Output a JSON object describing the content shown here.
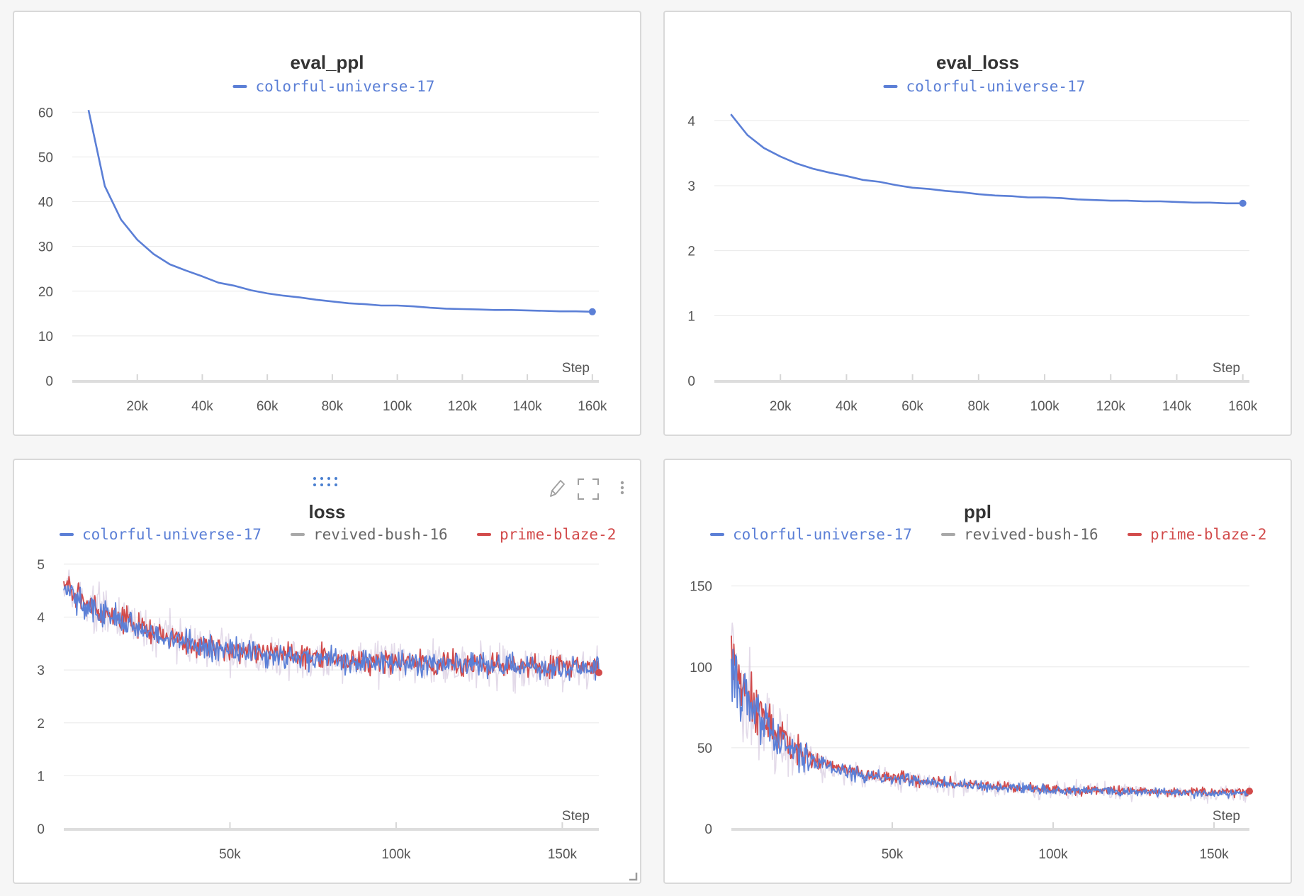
{
  "chart_data": [
    {
      "id": "eval_ppl",
      "type": "line",
      "title": "eval_ppl",
      "xlabel": "Step",
      "ylabel": "",
      "xlim": [
        0,
        162000
      ],
      "ylim": [
        0,
        61
      ],
      "xticks": [
        20000,
        40000,
        60000,
        80000,
        100000,
        120000,
        140000,
        160000
      ],
      "xtick_labels": [
        "20k",
        "40k",
        "60k",
        "80k",
        "100k",
        "120k",
        "140k",
        "160k"
      ],
      "yticks": [
        0,
        10,
        20,
        30,
        40,
        50,
        60
      ],
      "ytick_labels": [
        "0",
        "10",
        "20",
        "30",
        "40",
        "50",
        "60"
      ],
      "legend": [
        "colorful-universe-17"
      ],
      "series": [
        {
          "name": "colorful-universe-17",
          "color": "#5b7fd6",
          "x": [
            5000,
            10000,
            15000,
            20000,
            25000,
            30000,
            35000,
            40000,
            45000,
            50000,
            55000,
            60000,
            65000,
            70000,
            75000,
            80000,
            85000,
            90000,
            95000,
            100000,
            105000,
            110000,
            115000,
            120000,
            125000,
            130000,
            135000,
            140000,
            145000,
            150000,
            155000,
            160000
          ],
          "values": [
            60.5,
            43.5,
            36.0,
            31.5,
            28.3,
            26.0,
            24.6,
            23.3,
            21.9,
            21.2,
            20.2,
            19.5,
            19.0,
            18.6,
            18.1,
            17.7,
            17.3,
            17.1,
            16.8,
            16.8,
            16.6,
            16.3,
            16.1,
            16.0,
            15.9,
            15.8,
            15.8,
            15.7,
            15.6,
            15.5,
            15.5,
            15.4
          ]
        }
      ]
    },
    {
      "id": "eval_loss",
      "type": "line",
      "title": "eval_loss",
      "xlabel": "Step",
      "ylabel": "",
      "xlim": [
        0,
        162000
      ],
      "ylim": [
        0,
        4.2
      ],
      "xticks": [
        20000,
        40000,
        60000,
        80000,
        100000,
        120000,
        140000,
        160000
      ],
      "xtick_labels": [
        "20k",
        "40k",
        "60k",
        "80k",
        "100k",
        "120k",
        "140k",
        "160k"
      ],
      "yticks": [
        0,
        1,
        2,
        3,
        4
      ],
      "ytick_labels": [
        "0",
        "1",
        "2",
        "3",
        "4"
      ],
      "legend": [
        "colorful-universe-17"
      ],
      "series": [
        {
          "name": "colorful-universe-17",
          "color": "#5b7fd6",
          "x": [
            5000,
            10000,
            15000,
            20000,
            25000,
            30000,
            35000,
            40000,
            45000,
            50000,
            55000,
            60000,
            65000,
            70000,
            75000,
            80000,
            85000,
            90000,
            95000,
            100000,
            105000,
            110000,
            115000,
            120000,
            125000,
            130000,
            135000,
            140000,
            145000,
            150000,
            155000,
            160000
          ],
          "values": [
            4.1,
            3.78,
            3.58,
            3.45,
            3.34,
            3.26,
            3.2,
            3.15,
            3.09,
            3.06,
            3.01,
            2.97,
            2.95,
            2.92,
            2.9,
            2.87,
            2.85,
            2.84,
            2.82,
            2.82,
            2.81,
            2.79,
            2.78,
            2.77,
            2.77,
            2.76,
            2.76,
            2.75,
            2.74,
            2.74,
            2.73,
            2.73
          ]
        }
      ]
    },
    {
      "id": "loss",
      "type": "line",
      "title": "loss",
      "xlabel": "Step",
      "ylabel": "",
      "xlim": [
        0,
        161000
      ],
      "ylim": [
        0,
        5.2
      ],
      "xticks": [
        50000,
        100000,
        150000
      ],
      "xtick_labels": [
        "50k",
        "100k",
        "150k"
      ],
      "yticks": [
        0,
        1,
        2,
        3,
        4,
        5
      ],
      "ytick_labels": [
        "0",
        "1",
        "2",
        "3",
        "4",
        "5"
      ],
      "legend": [
        "colorful-universe-17",
        "revived-bush-16",
        "prime-blaze-2"
      ],
      "series": [
        {
          "name": "colorful-universe-17",
          "color": "#5b7fd6",
          "x_range": [
            0,
            161000
          ],
          "trend": [
            [
              0,
              4.6
            ],
            [
              5000,
              4.3
            ],
            [
              20000,
              3.85
            ],
            [
              40000,
              3.45
            ],
            [
              60000,
              3.3
            ],
            [
              80000,
              3.2
            ],
            [
              100000,
              3.12
            ],
            [
              120000,
              3.1
            ],
            [
              140000,
              3.06
            ],
            [
              161000,
              3.05
            ]
          ],
          "noise": 0.17
        },
        {
          "name": "revived-bush-16",
          "color": "#a8a8a8",
          "x_range": [
            0,
            161000
          ],
          "trend": [
            [
              0,
              4.6
            ],
            [
              5000,
              4.3
            ],
            [
              20000,
              3.85
            ],
            [
              40000,
              3.45
            ],
            [
              60000,
              3.3
            ],
            [
              80000,
              3.2
            ],
            [
              100000,
              3.12
            ],
            [
              120000,
              3.1
            ],
            [
              140000,
              3.06
            ],
            [
              161000,
              3.05
            ]
          ],
          "noise": 0.3
        },
        {
          "name": "prime-blaze-2",
          "color": "#d24b4b",
          "x_range": [
            0,
            161000
          ],
          "trend": [
            [
              0,
              4.62
            ],
            [
              5000,
              4.32
            ],
            [
              20000,
              3.87
            ],
            [
              40000,
              3.47
            ],
            [
              60000,
              3.32
            ],
            [
              80000,
              3.22
            ],
            [
              100000,
              3.14
            ],
            [
              120000,
              3.11
            ],
            [
              140000,
              3.08
            ],
            [
              161000,
              3.06
            ]
          ],
          "noise": 0.16
        }
      ]
    },
    {
      "id": "ppl",
      "type": "line",
      "title": "ppl",
      "xlabel": "Step",
      "ylabel": "",
      "xlim": [
        0,
        161000
      ],
      "ylim": [
        0,
        170
      ],
      "xticks": [
        50000,
        100000,
        150000
      ],
      "xtick_labels": [
        "50k",
        "100k",
        "150k"
      ],
      "yticks": [
        0,
        50,
        100,
        150
      ],
      "ytick_labels": [
        "0",
        "50",
        "100",
        "150"
      ],
      "legend": [
        "colorful-universe-17",
        "revived-bush-16",
        "prime-blaze-2"
      ],
      "series": [
        {
          "name": "colorful-universe-17",
          "color": "#5b7fd6",
          "x_range": [
            0,
            161000
          ],
          "trend": [
            [
              0,
              100
            ],
            [
              3000,
              85
            ],
            [
              8000,
              70
            ],
            [
              15000,
              55
            ],
            [
              25000,
              42
            ],
            [
              40000,
              33
            ],
            [
              60000,
              29
            ],
            [
              80000,
              26
            ],
            [
              100000,
              24
            ],
            [
              120000,
              23
            ],
            [
              140000,
              22
            ],
            [
              161000,
              22
            ]
          ],
          "noise": 0.08
        },
        {
          "name": "revived-bush-16",
          "color": "#a8a8a8",
          "x_range": [
            0,
            161000
          ],
          "trend": [
            [
              0,
              100
            ],
            [
              3000,
              85
            ],
            [
              8000,
              70
            ],
            [
              15000,
              55
            ],
            [
              25000,
              42
            ],
            [
              40000,
              33
            ],
            [
              60000,
              29
            ],
            [
              80000,
              26
            ],
            [
              100000,
              24
            ],
            [
              120000,
              23
            ],
            [
              140000,
              22
            ],
            [
              161000,
              22
            ]
          ],
          "noise": 0.15
        },
        {
          "name": "prime-blaze-2",
          "color": "#d24b4b",
          "x_range": [
            0,
            161000
          ],
          "trend": [
            [
              0,
              102
            ],
            [
              3000,
              87
            ],
            [
              8000,
              72
            ],
            [
              15000,
              56
            ],
            [
              25000,
              43
            ],
            [
              40000,
              34
            ],
            [
              60000,
              29.5
            ],
            [
              80000,
              26.5
            ],
            [
              100000,
              24.5
            ],
            [
              120000,
              23.5
            ],
            [
              140000,
              22.5
            ],
            [
              161000,
              22.5
            ]
          ],
          "noise": 0.08
        }
      ]
    }
  ],
  "colors": {
    "grid": "#e8e8e8",
    "axis": "#dddddd",
    "drag_handle": "#4a7fd0"
  },
  "icons": {
    "drag": "drag-handle-icon",
    "edit": "pencil-icon",
    "fullscreen": "fullscreen-icon",
    "menu": "more-vertical-icon",
    "resize": "resize-corner-icon"
  }
}
